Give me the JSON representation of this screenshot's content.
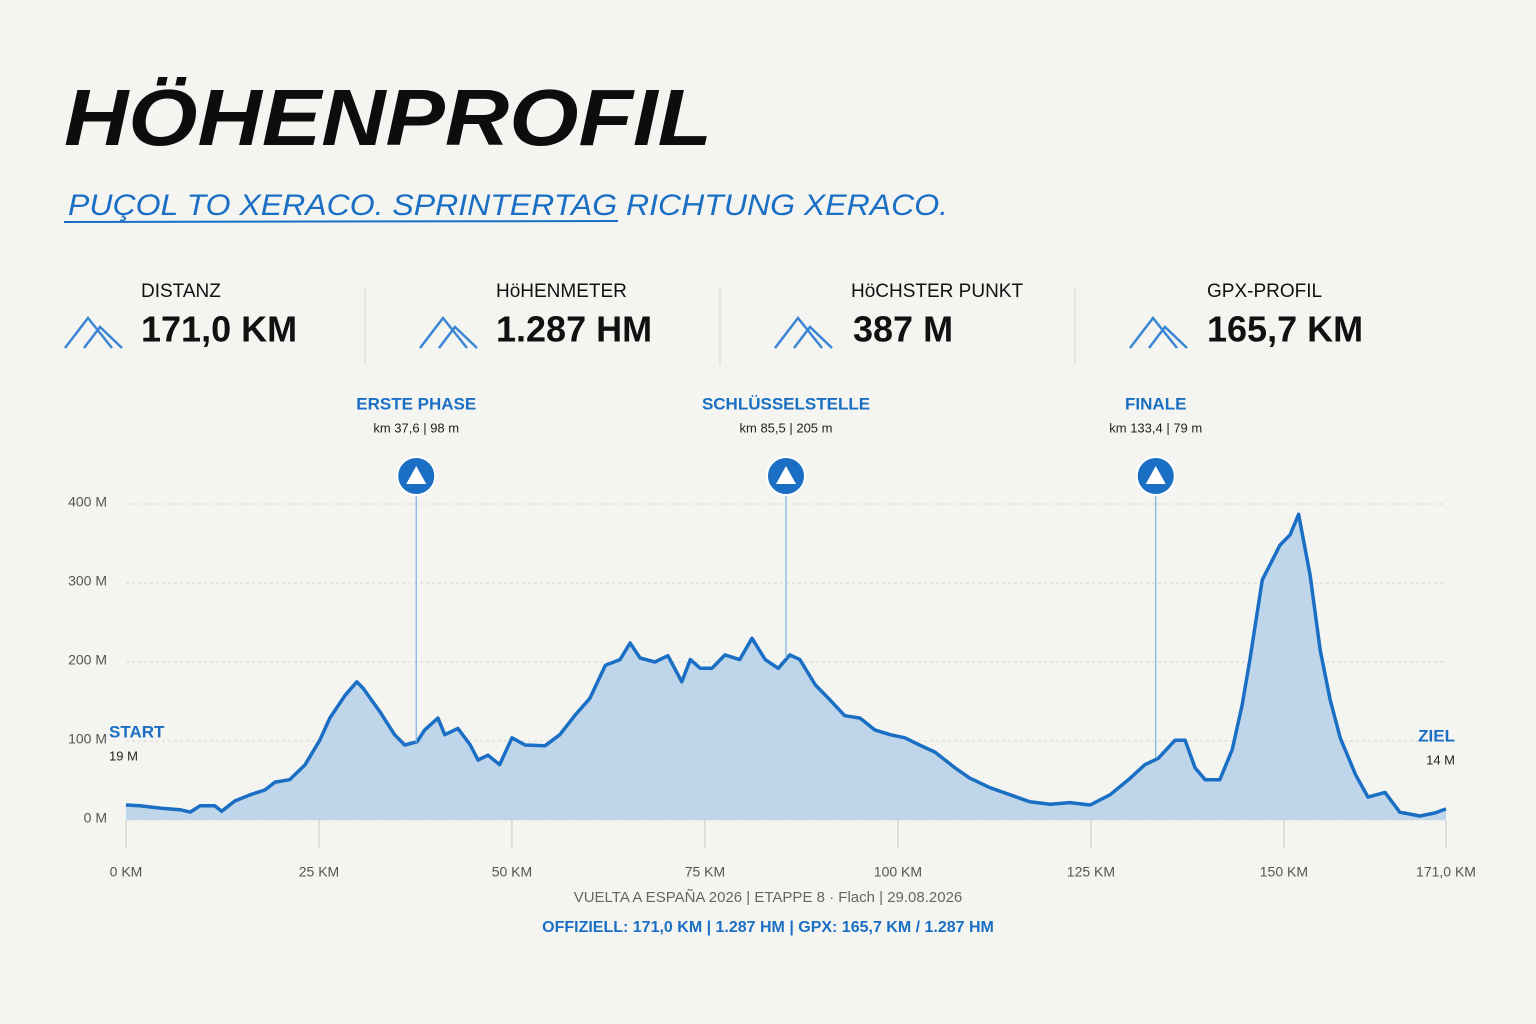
{
  "header": {
    "title": "HÖHENPROFIL",
    "subtitle": "PUÇOL TO XERACO. SPRINTERTAG RICHTUNG XERACO."
  },
  "stats": [
    {
      "label": "DISTANZ",
      "value": "171,0 KM"
    },
    {
      "label": "HöHENMETER",
      "value": "1.287 HM"
    },
    {
      "label": "HöCHSTER PUNKT",
      "value": "387 M"
    },
    {
      "label": "GPX-PROFIL",
      "value": "165,7 KM"
    }
  ],
  "chart_data": {
    "type": "area",
    "x": [
      0,
      1.8,
      4.4,
      7,
      8.3,
      9.6,
      11.5,
      12.4,
      14.1,
      16.1,
      18,
      19.3,
      21.2,
      23.2,
      25.1,
      26.4,
      28.4,
      29.9,
      30.7,
      32.9,
      34.8,
      36.1,
      37.7,
      38.7,
      40.4,
      41.3,
      43,
      44.6,
      45.6,
      46.9,
      48.4,
      50,
      51.7,
      54.3,
      56.2,
      58.2,
      60.1,
      62.1,
      64,
      65.3,
      66.6,
      68.5,
      70.2,
      72,
      73.1,
      74.4,
      75.9,
      77.6,
      79.5,
      81.1,
      82.8,
      84.5,
      86,
      87.3,
      89.3,
      91.2,
      93.1,
      95.1,
      97,
      99,
      100.9,
      102.8,
      104.8,
      107.4,
      109.3,
      111.9,
      114.5,
      117.1,
      119.7,
      122.3,
      124.9,
      127.5,
      130.1,
      132,
      133.7,
      135.9,
      137.2,
      138.5,
      139.8,
      141.7,
      143.3,
      144.6,
      145.6,
      147.2,
      148.2,
      149.5,
      150.8,
      151.9,
      153.4,
      154.7,
      156,
      157.3,
      159.3,
      160.9,
      163.1,
      165,
      167.6,
      169.6,
      171
    ],
    "values": [
      19,
      18,
      15,
      13,
      10,
      18,
      18,
      11,
      24,
      32,
      38,
      48,
      51,
      70,
      101,
      129,
      158,
      175,
      167,
      137,
      108,
      95,
      99,
      114,
      129,
      108,
      116,
      95,
      76,
      82,
      70,
      104,
      95,
      94,
      108,
      133,
      154,
      196,
      203,
      224,
      205,
      200,
      208,
      175,
      203,
      192,
      192,
      209,
      203,
      230,
      203,
      192,
      209,
      203,
      171,
      152,
      132,
      129,
      114,
      108,
      104,
      95,
      86,
      66,
      53,
      41,
      32,
      23,
      20,
      22,
      19,
      32,
      53,
      70,
      78,
      101,
      101,
      66,
      51,
      51,
      89,
      146,
      203,
      304,
      323,
      348,
      361,
      387,
      310,
      215,
      152,
      104,
      57,
      29,
      35,
      10,
      5,
      9,
      14
    ],
    "color": "#1a6fc4",
    "fill": "#bfd5ea",
    "xlim": [
      0,
      171
    ],
    "ylim": [
      0,
      400
    ],
    "xticks": [
      {
        "value": 0,
        "label": "0 KM"
      },
      {
        "value": 25,
        "label": "25 KM"
      },
      {
        "value": 50,
        "label": "50 KM"
      },
      {
        "value": 75,
        "label": "75 KM"
      },
      {
        "value": 100,
        "label": "100 KM"
      },
      {
        "value": 125,
        "label": "125 KM"
      },
      {
        "value": 150,
        "label": "150 KM"
      },
      {
        "value": 171,
        "label": "171,0 KM"
      }
    ],
    "yticks": [
      {
        "value": 0,
        "label": "0 M"
      },
      {
        "value": 100,
        "label": "100 M"
      },
      {
        "value": 200,
        "label": "200 M"
      },
      {
        "value": 300,
        "label": "300 M"
      },
      {
        "value": 400,
        "label": "400 M"
      }
    ],
    "grid": true,
    "annotations": [
      {
        "label": "ERSTE PHASE",
        "detail": "km 37,6 | 98 m",
        "x": 37.6,
        "y": 98
      },
      {
        "label": "SCHLÜSSELSTELLE",
        "detail": "km 85,5 | 205 m",
        "x": 85.5,
        "y": 205
      },
      {
        "label": "FINALE",
        "detail": "km 133,4 | 79 m",
        "x": 133.4,
        "y": 79
      }
    ],
    "endpoints": [
      {
        "label": "START",
        "x": 0,
        "value": 19,
        "value_label": "19 M"
      },
      {
        "label": "ZIEL",
        "x": 171,
        "value": 14,
        "value_label": "14 M"
      }
    ]
  },
  "footer": {
    "line1": "VUELTA A ESPAÑA 2026 | ETAPPE 8 · Flach | 29.08.2026",
    "line2": "OFFIZIELL: 171,0 KM | 1.287 HM | GPX: 165,7 KM / 1.287 HM"
  }
}
